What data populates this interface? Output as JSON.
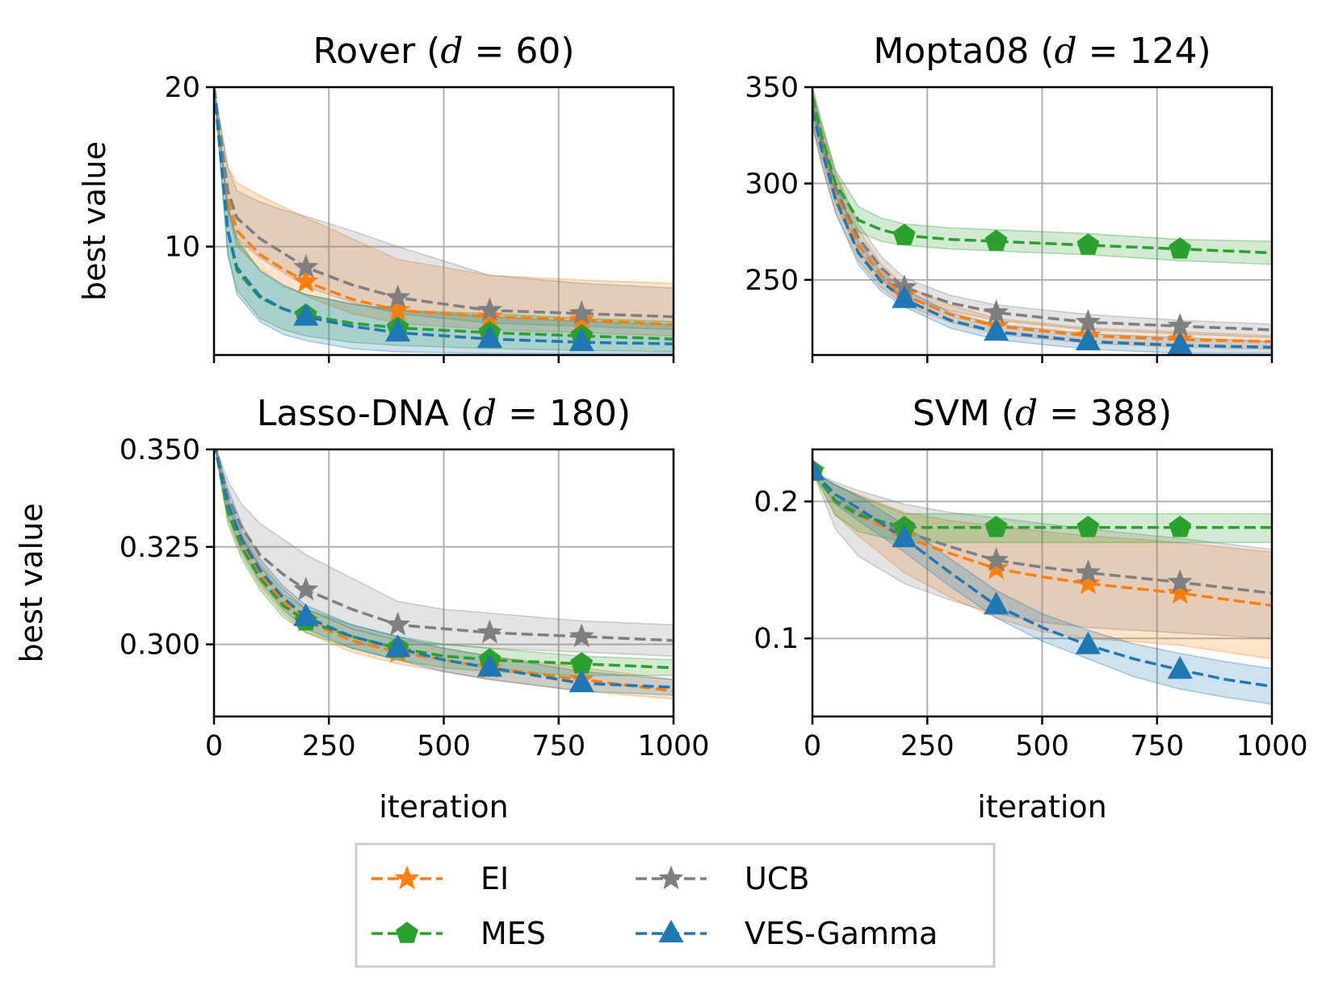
{
  "legend": {
    "entries": [
      {
        "label": "EI",
        "color": "#ff7f0e",
        "marker": "star"
      },
      {
        "label": "UCB",
        "color": "#7f7f7f",
        "marker": "star"
      },
      {
        "label": "MES",
        "color": "#2ca02c",
        "marker": "pentagon"
      },
      {
        "label": "VES-Gamma",
        "color": "#1f77b4",
        "marker": "triangle"
      }
    ]
  },
  "chart_data": [
    {
      "type": "line",
      "title_prefix": "Rover (",
      "title_math": "d = 60",
      "title_suffix": ")",
      "xlabel": "",
      "ylabel": "best value",
      "xlim": [
        0,
        1000
      ],
      "ylim": [
        3.2,
        20
      ],
      "xticks": [
        0,
        250,
        500,
        750,
        1000
      ],
      "yticks": [
        {
          "v": 10,
          "label": "10"
        },
        {
          "v": 20,
          "label": "20"
        }
      ],
      "show_xticklabels": false,
      "grid": true,
      "markers_at": [
        200,
        400,
        600,
        800
      ],
      "series": [
        {
          "name": "EI",
          "color": "#ff7f0e",
          "marker": "star",
          "x": [
            0,
            30,
            50,
            100,
            150,
            200,
            300,
            400,
            600,
            800,
            1000
          ],
          "y": [
            20,
            13,
            11,
            9.5,
            8.6,
            7.8,
            6.7,
            6.0,
            5.6,
            5.4,
            5.1
          ],
          "lower": [
            20,
            12,
            10,
            8.6,
            7.6,
            6.9,
            5.8,
            5.2,
            4.8,
            4.6,
            4.4
          ],
          "upper": [
            20,
            15,
            14,
            13.2,
            12.5,
            11.8,
            10.5,
            9.2,
            8.2,
            7.9,
            7.7
          ]
        },
        {
          "name": "UCB",
          "color": "#7f7f7f",
          "marker": "star",
          "x": [
            0,
            30,
            50,
            100,
            150,
            200,
            300,
            400,
            600,
            800,
            1000
          ],
          "y": [
            20,
            13.5,
            11.8,
            10.5,
            9.6,
            8.7,
            7.6,
            6.8,
            6.0,
            5.8,
            5.6
          ],
          "lower": [
            20,
            12.5,
            10.5,
            9.3,
            8.4,
            7.5,
            6.5,
            5.8,
            5.2,
            5.0,
            4.8
          ],
          "upper": [
            20,
            15,
            13.5,
            12.8,
            12.3,
            11.9,
            11.0,
            10.0,
            8.2,
            7.7,
            7.4
          ]
        },
        {
          "name": "MES",
          "color": "#2ca02c",
          "marker": "pentagon",
          "x": [
            0,
            30,
            50,
            100,
            150,
            200,
            300,
            400,
            600,
            800,
            1000
          ],
          "y": [
            20,
            11,
            8.5,
            6.8,
            6.1,
            5.7,
            5.2,
            4.9,
            4.6,
            4.4,
            4.2
          ],
          "lower": [
            20,
            9.5,
            7.3,
            5.5,
            4.8,
            4.4,
            4.0,
            3.8,
            3.6,
            3.5,
            3.4
          ],
          "upper": [
            20,
            12.5,
            10.5,
            8.5,
            7.5,
            7.0,
            6.4,
            6.0,
            5.8,
            5.5,
            5.3
          ]
        },
        {
          "name": "VES-Gamma",
          "color": "#1f77b4",
          "marker": "triangle",
          "x": [
            0,
            30,
            50,
            100,
            150,
            200,
            300,
            400,
            600,
            800,
            1000
          ],
          "y": [
            20,
            11,
            8.7,
            6.9,
            6.1,
            5.6,
            5.0,
            4.6,
            4.2,
            4.0,
            3.9
          ],
          "lower": [
            20,
            9.5,
            7.0,
            5.3,
            4.5,
            4.1,
            3.6,
            3.4,
            3.3,
            3.3,
            3.3
          ],
          "upper": [
            20,
            12.5,
            10.3,
            8.5,
            7.6,
            7.0,
            6.4,
            6.0,
            5.6,
            5.3,
            5.1
          ]
        }
      ]
    },
    {
      "type": "line",
      "title_prefix": "Mopta08 (",
      "title_math": "d = 124",
      "title_suffix": ")",
      "xlabel": "",
      "ylabel": "",
      "xlim": [
        0,
        1000
      ],
      "ylim": [
        211,
        350
      ],
      "xticks": [
        0,
        250,
        500,
        750,
        1000
      ],
      "yticks": [
        {
          "v": 250,
          "label": "250"
        },
        {
          "v": 300,
          "label": "300"
        },
        {
          "v": 350,
          "label": "350"
        }
      ],
      "show_xticklabels": false,
      "grid": true,
      "markers_at": [
        200,
        400,
        600,
        800
      ],
      "series": [
        {
          "name": "EI",
          "color": "#ff7f0e",
          "marker": "star",
          "x": [
            0,
            20,
            50,
            100,
            150,
            200,
            300,
            400,
            600,
            800,
            1000
          ],
          "y": [
            340,
            320,
            295,
            268,
            252,
            242,
            232,
            226,
            221,
            219,
            218
          ],
          "lower": [
            330,
            310,
            285,
            260,
            246,
            237,
            228,
            222,
            217,
            215,
            214
          ],
          "upper": [
            350,
            330,
            305,
            276,
            258,
            247,
            237,
            230,
            225,
            223,
            221
          ]
        },
        {
          "name": "UCB",
          "color": "#7f7f7f",
          "marker": "star",
          "x": [
            0,
            20,
            50,
            100,
            150,
            200,
            300,
            400,
            600,
            800,
            1000
          ],
          "y": [
            340,
            322,
            298,
            272,
            256,
            246,
            238,
            233,
            228,
            226,
            224
          ],
          "lower": [
            332,
            314,
            290,
            265,
            250,
            241,
            234,
            229,
            224,
            222,
            220
          ],
          "upper": [
            348,
            330,
            306,
            279,
            262,
            251,
            242,
            237,
            232,
            229,
            227
          ]
        },
        {
          "name": "MES",
          "color": "#2ca02c",
          "marker": "pentagon",
          "x": [
            0,
            20,
            50,
            100,
            150,
            200,
            300,
            400,
            600,
            800,
            1000
          ],
          "y": [
            345,
            325,
            300,
            281,
            276,
            273,
            271,
            270,
            268,
            266,
            264
          ],
          "lower": [
            338,
            318,
            293,
            275,
            270,
            268,
            266,
            265,
            263,
            260,
            258
          ],
          "upper": [
            350,
            332,
            307,
            288,
            282,
            279,
            277,
            276,
            274,
            271,
            270
          ]
        },
        {
          "name": "VES-Gamma",
          "color": "#1f77b4",
          "marker": "triangle",
          "x": [
            0,
            20,
            50,
            100,
            150,
            200,
            300,
            400,
            600,
            800,
            1000
          ],
          "y": [
            338,
            318,
            292,
            264,
            249,
            240,
            229,
            223,
            218,
            216,
            215
          ],
          "lower": [
            330,
            310,
            285,
            258,
            244,
            236,
            225,
            219,
            214,
            212,
            212
          ],
          "upper": [
            346,
            326,
            300,
            270,
            254,
            245,
            233,
            227,
            222,
            220,
            218
          ]
        }
      ]
    },
    {
      "type": "line",
      "title_prefix": "Lasso-DNA (",
      "title_math": "d = 180",
      "title_suffix": ")",
      "xlabel": "iteration",
      "ylabel": "best value",
      "xlim": [
        0,
        1000
      ],
      "ylim": [
        0.2815,
        0.35
      ],
      "xticks": [
        0,
        250,
        500,
        750,
        1000
      ],
      "yticks": [
        {
          "v": 0.3,
          "label": "0.300"
        },
        {
          "v": 0.325,
          "label": "0.325"
        },
        {
          "v": 0.35,
          "label": "0.350"
        }
      ],
      "show_xticklabels": true,
      "grid": true,
      "markers_at": [
        200,
        400,
        600,
        800
      ],
      "series": [
        {
          "name": "EI",
          "color": "#ff7f0e",
          "marker": "star",
          "x": [
            0,
            30,
            60,
            100,
            150,
            200,
            300,
            400,
            500,
            600,
            800,
            1000
          ],
          "y": [
            0.352,
            0.335,
            0.326,
            0.318,
            0.311,
            0.306,
            0.301,
            0.298,
            0.296,
            0.294,
            0.291,
            0.288
          ],
          "lower": [
            0.352,
            0.332,
            0.323,
            0.315,
            0.308,
            0.303,
            0.298,
            0.295,
            0.293,
            0.291,
            0.288,
            0.286
          ],
          "upper": [
            0.352,
            0.338,
            0.329,
            0.321,
            0.314,
            0.309,
            0.304,
            0.301,
            0.299,
            0.297,
            0.294,
            0.291
          ]
        },
        {
          "name": "UCB",
          "color": "#7f7f7f",
          "marker": "star",
          "x": [
            0,
            30,
            60,
            100,
            150,
            200,
            300,
            400,
            500,
            600,
            800,
            1000
          ],
          "y": [
            0.352,
            0.338,
            0.33,
            0.323,
            0.318,
            0.314,
            0.309,
            0.305,
            0.304,
            0.303,
            0.302,
            0.301
          ],
          "lower": [
            0.352,
            0.335,
            0.327,
            0.32,
            0.314,
            0.309,
            0.304,
            0.301,
            0.3,
            0.299,
            0.298,
            0.297
          ],
          "upper": [
            0.352,
            0.342,
            0.336,
            0.331,
            0.327,
            0.323,
            0.317,
            0.311,
            0.309,
            0.308,
            0.306,
            0.305
          ]
        },
        {
          "name": "MES",
          "color": "#2ca02c",
          "marker": "pentagon",
          "x": [
            0,
            30,
            60,
            100,
            150,
            200,
            300,
            400,
            500,
            600,
            800,
            1000
          ],
          "y": [
            0.352,
            0.334,
            0.325,
            0.317,
            0.31,
            0.306,
            0.302,
            0.299,
            0.297,
            0.296,
            0.295,
            0.294
          ],
          "lower": [
            0.352,
            0.331,
            0.322,
            0.314,
            0.307,
            0.303,
            0.299,
            0.296,
            0.294,
            0.293,
            0.292,
            0.292
          ],
          "upper": [
            0.352,
            0.337,
            0.328,
            0.32,
            0.313,
            0.309,
            0.305,
            0.302,
            0.3,
            0.299,
            0.297,
            0.296
          ]
        },
        {
          "name": "VES-Gamma",
          "color": "#1f77b4",
          "marker": "triangle",
          "x": [
            0,
            30,
            60,
            100,
            150,
            200,
            300,
            400,
            500,
            600,
            800,
            1000
          ],
          "y": [
            0.352,
            0.336,
            0.327,
            0.319,
            0.312,
            0.307,
            0.302,
            0.299,
            0.296,
            0.294,
            0.29,
            0.289
          ],
          "lower": [
            0.352,
            0.333,
            0.324,
            0.316,
            0.309,
            0.304,
            0.299,
            0.296,
            0.293,
            0.291,
            0.288,
            0.287
          ],
          "upper": [
            0.352,
            0.34,
            0.331,
            0.322,
            0.315,
            0.31,
            0.305,
            0.302,
            0.299,
            0.297,
            0.293,
            0.291
          ]
        }
      ]
    },
    {
      "type": "line",
      "title_prefix": "SVM (",
      "title_math": "d = 388",
      "title_suffix": ")",
      "xlabel": "iteration",
      "ylabel": "",
      "xlim": [
        0,
        1000
      ],
      "ylim": [
        0.043,
        0.238
      ],
      "xticks": [
        0,
        250,
        500,
        750,
        1000
      ],
      "yticks": [
        {
          "v": 0.1,
          "label": "0.1"
        },
        {
          "v": 0.2,
          "label": "0.2"
        }
      ],
      "show_xticklabels": true,
      "grid": true,
      "markers_at": [
        0,
        200,
        400,
        600,
        800
      ],
      "series": [
        {
          "name": "EI",
          "color": "#ff7f0e",
          "marker": "star",
          "x": [
            0,
            50,
            100,
            200,
            300,
            400,
            500,
            600,
            800,
            1000
          ],
          "y": [
            0.222,
            0.2,
            0.19,
            0.174,
            0.162,
            0.151,
            0.145,
            0.14,
            0.133,
            0.124
          ],
          "lower": [
            0.222,
            0.19,
            0.175,
            0.148,
            0.13,
            0.115,
            0.105,
            0.1,
            0.095,
            0.085
          ],
          "upper": [
            0.222,
            0.212,
            0.205,
            0.192,
            0.186,
            0.182,
            0.178,
            0.175,
            0.17,
            0.163
          ]
        },
        {
          "name": "UCB",
          "color": "#7f7f7f",
          "marker": "star",
          "x": [
            0,
            50,
            100,
            200,
            300,
            400,
            500,
            600,
            800,
            1000
          ],
          "y": [
            0.222,
            0.201,
            0.192,
            0.178,
            0.167,
            0.157,
            0.152,
            0.148,
            0.141,
            0.133
          ],
          "lower": [
            0.222,
            0.18,
            0.16,
            0.14,
            0.128,
            0.118,
            0.112,
            0.108,
            0.104,
            0.1
          ],
          "upper": [
            0.222,
            0.214,
            0.208,
            0.198,
            0.192,
            0.188,
            0.184,
            0.18,
            0.173,
            0.165
          ]
        },
        {
          "name": "MES",
          "color": "#2ca02c",
          "marker": "pentagon",
          "x": [
            0,
            50,
            100,
            200,
            300,
            400,
            500,
            600,
            800,
            1000
          ],
          "y": [
            0.222,
            0.2,
            0.19,
            0.181,
            0.181,
            0.181,
            0.181,
            0.181,
            0.181,
            0.181
          ],
          "lower": [
            0.222,
            0.19,
            0.178,
            0.17,
            0.17,
            0.17,
            0.17,
            0.17,
            0.17,
            0.17
          ],
          "upper": [
            0.222,
            0.212,
            0.204,
            0.191,
            0.191,
            0.191,
            0.191,
            0.191,
            0.191,
            0.191
          ]
        },
        {
          "name": "VES-Gamma",
          "color": "#1f77b4",
          "marker": "triangle",
          "x": [
            0,
            50,
            100,
            200,
            300,
            400,
            500,
            600,
            700,
            800,
            900,
            1000
          ],
          "y": [
            0.222,
            0.205,
            0.195,
            0.173,
            0.148,
            0.124,
            0.108,
            0.095,
            0.085,
            0.077,
            0.07,
            0.065
          ],
          "lower": [
            0.222,
            0.198,
            0.186,
            0.163,
            0.138,
            0.115,
            0.098,
            0.085,
            0.072,
            0.063,
            0.057,
            0.052
          ],
          "upper": [
            0.222,
            0.212,
            0.204,
            0.183,
            0.158,
            0.135,
            0.118,
            0.106,
            0.096,
            0.089,
            0.083,
            0.078
          ]
        }
      ]
    }
  ]
}
